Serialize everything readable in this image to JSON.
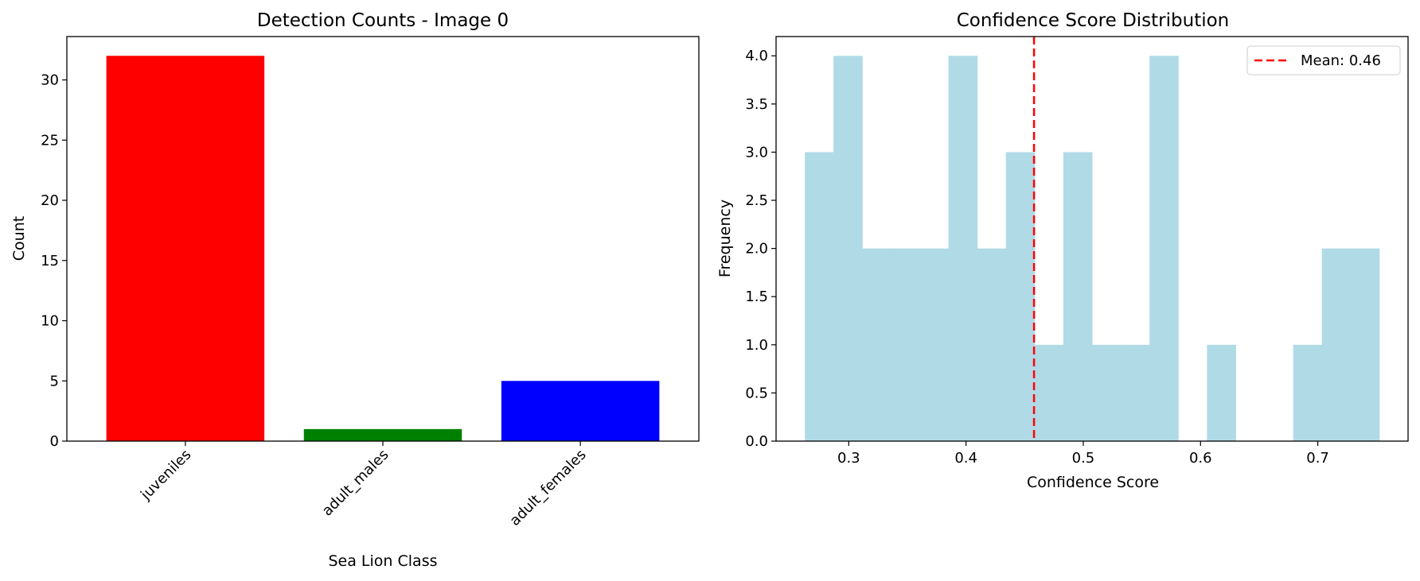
{
  "chart_data": [
    {
      "type": "bar",
      "title": "Detection Counts - Image 0",
      "xlabel": "Sea Lion Class",
      "ylabel": "Count",
      "categories": [
        "juveniles",
        "adult_males",
        "adult_females"
      ],
      "values": [
        32,
        1,
        5
      ],
      "colors": [
        "#ff0000",
        "#008000",
        "#0000ff"
      ],
      "ylim": [
        0,
        33.6
      ],
      "yticks": [
        0,
        5,
        10,
        15,
        20,
        25,
        30
      ],
      "ytick_labels": [
        "0",
        "5",
        "10",
        "15",
        "20",
        "25",
        "30"
      ],
      "xtick_rotation": 45,
      "grid": false
    },
    {
      "type": "bar",
      "title": "Confidence Score Distribution",
      "xlabel": "Confidence Score",
      "ylabel": "Frequency",
      "bins": [
        {
          "x0": 0.2625,
          "x1": 0.287,
          "count": 3
        },
        {
          "x0": 0.287,
          "x1": 0.3115,
          "count": 4
        },
        {
          "x0": 0.3115,
          "x1": 0.336,
          "count": 2
        },
        {
          "x0": 0.336,
          "x1": 0.3605,
          "count": 2
        },
        {
          "x0": 0.3605,
          "x1": 0.385,
          "count": 2
        },
        {
          "x0": 0.385,
          "x1": 0.4095,
          "count": 4
        },
        {
          "x0": 0.4095,
          "x1": 0.434,
          "count": 2
        },
        {
          "x0": 0.434,
          "x1": 0.4585,
          "count": 3
        },
        {
          "x0": 0.4585,
          "x1": 0.483,
          "count": 1
        },
        {
          "x0": 0.483,
          "x1": 0.5075,
          "count": 3
        },
        {
          "x0": 0.5075,
          "x1": 0.532,
          "count": 1
        },
        {
          "x0": 0.532,
          "x1": 0.5565,
          "count": 1
        },
        {
          "x0": 0.5565,
          "x1": 0.581,
          "count": 4
        },
        {
          "x0": 0.581,
          "x1": 0.6055,
          "count": 0
        },
        {
          "x0": 0.6055,
          "x1": 0.63,
          "count": 1
        },
        {
          "x0": 0.63,
          "x1": 0.6545,
          "count": 0
        },
        {
          "x0": 0.6545,
          "x1": 0.679,
          "count": 0
        },
        {
          "x0": 0.679,
          "x1": 0.7035,
          "count": 1
        },
        {
          "x0": 0.7035,
          "x1": 0.728,
          "count": 2
        },
        {
          "x0": 0.728,
          "x1": 0.7525,
          "count": 2
        }
      ],
      "bar_color": "#add8e6",
      "bar_opacity": 0.95,
      "mean": 0.458,
      "mean_line_color": "#ff0000",
      "legend_label": "Mean: 0.46",
      "legend_position": "top-right",
      "xlim": [
        0.238,
        0.777
      ],
      "ylim": [
        0,
        4.2
      ],
      "xticks": [
        0.3,
        0.4,
        0.5,
        0.6,
        0.7
      ],
      "xtick_labels": [
        "0.3",
        "0.4",
        "0.5",
        "0.6",
        "0.7"
      ],
      "yticks": [
        0,
        0.5,
        1.0,
        1.5,
        2.0,
        2.5,
        3.0,
        3.5,
        4.0
      ],
      "ytick_labels": [
        "0.0",
        "0.5",
        "1.0",
        "1.5",
        "2.0",
        "2.5",
        "3.0",
        "3.5",
        "4.0"
      ],
      "grid": false
    }
  ]
}
